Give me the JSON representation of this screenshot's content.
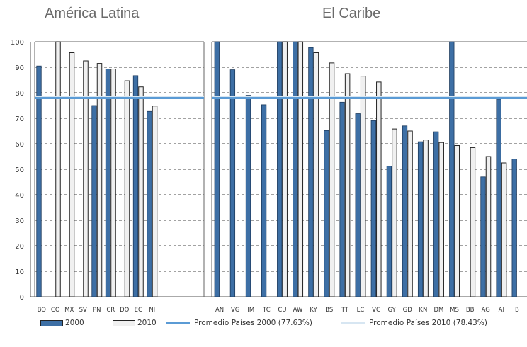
{
  "panel_titles": {
    "latam": "América Latina",
    "caribe": "El Caribe"
  },
  "legend": {
    "s2000": "2000",
    "s2010": "2010",
    "avg2000": "Promedio Países 2000 (77.63%)",
    "avg2010": "Promedio Países 2010 (78.43%)"
  },
  "colors": {
    "s2000": "#3d6fa5",
    "s2010": "#f0f0f0",
    "avg2000": "#5b9bd5",
    "avg2010": "#d7e6f2"
  },
  "chart_data": [
    {
      "type": "bar",
      "title": "América Latina",
      "categories": [
        "BO",
        "CO",
        "MX",
        "SV",
        "PN",
        "CR",
        "DO",
        "EC",
        "NI"
      ],
      "series": [
        {
          "name": "2000",
          "values": [
            90.5,
            null,
            null,
            null,
            75,
            89.3,
            null,
            86.7,
            72.7
          ]
        },
        {
          "name": "2010",
          "values": [
            null,
            100,
            95.7,
            92.5,
            91.5,
            89.3,
            84.7,
            82.3,
            74.8
          ]
        }
      ],
      "reference_lines": [
        {
          "name": "Promedio Países 2000 (77.63%)",
          "value": 77.63
        },
        {
          "name": "Promedio Países 2010 (78.43%)",
          "value": 78.43
        }
      ],
      "ylim": [
        0,
        100
      ],
      "yticks": [
        0,
        10,
        20,
        30,
        40,
        50,
        60,
        70,
        80,
        90,
        100
      ],
      "grid": true
    },
    {
      "type": "bar",
      "title": "El Caribe",
      "categories": [
        "AN",
        "VG",
        "JM",
        "TC",
        "CU",
        "AW",
        "KY",
        "BS",
        "TT",
        "LC",
        "VC",
        "GY",
        "GD",
        "KN",
        "DM",
        "MS",
        "BB",
        "AG",
        "AI",
        "B"
      ],
      "series": [
        {
          "name": "2000",
          "values": [
            100,
            89,
            79,
            75.3,
            100,
            100,
            97.7,
            65.2,
            76.3,
            71.8,
            69.1,
            51.2,
            67,
            60.8,
            64.7,
            100,
            null,
            47,
            77.5,
            54
          ]
        },
        {
          "name": "2010",
          "values": [
            null,
            null,
            null,
            null,
            100,
            100,
            95.7,
            91.7,
            87.5,
            86.5,
            84.2,
            65.8,
            65,
            61.5,
            60.5,
            59.3,
            58.5,
            55,
            52.5,
            null
          ]
        }
      ],
      "reference_lines": [
        {
          "name": "Promedio Países 2000 (77.63%)",
          "value": 77.63
        },
        {
          "name": "Promedio Países 2010 (78.43%)",
          "value": 78.43
        }
      ],
      "ylim": [
        0,
        100
      ],
      "yticks": [
        0,
        10,
        20,
        30,
        40,
        50,
        60,
        70,
        80,
        90,
        100
      ],
      "grid": true
    }
  ]
}
